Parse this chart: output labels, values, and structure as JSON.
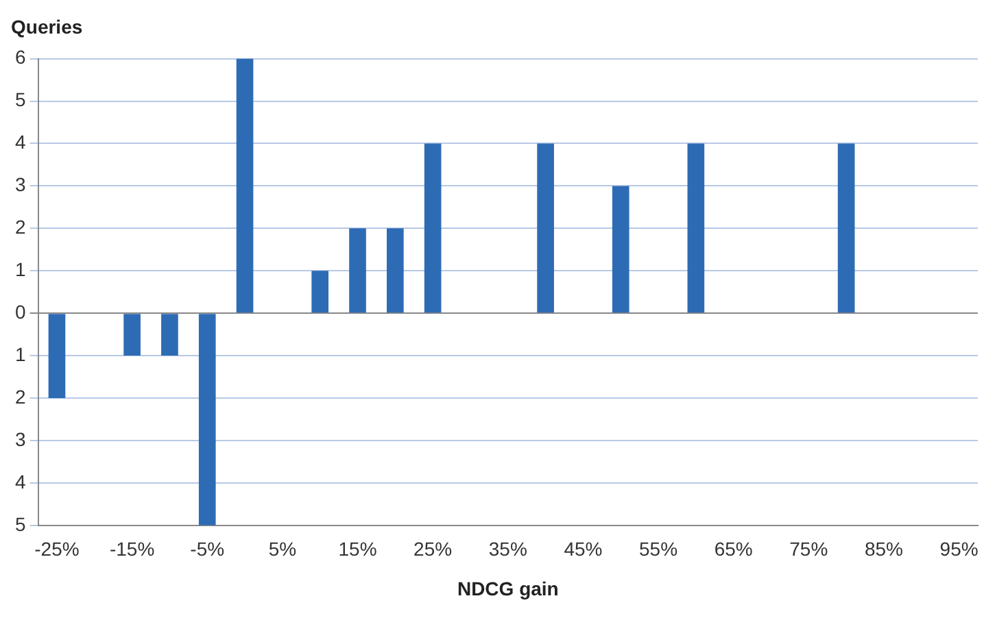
{
  "chart_data": {
    "type": "bar",
    "ylabel": "Queries",
    "xlabel": "NDCG gain",
    "categories": [
      "-25%",
      null,
      "-15%",
      null,
      "-5%",
      null,
      "5%",
      null,
      "15%",
      null,
      "25%",
      null,
      "35%",
      null,
      "45%",
      null,
      "55%",
      null,
      "65%",
      null,
      "75%",
      null,
      "85%",
      null,
      "95%"
    ],
    "values": [
      -2,
      0,
      -1,
      -1,
      -5,
      6,
      0,
      1,
      2,
      2,
      4,
      0,
      0,
      4,
      0,
      3,
      0,
      4,
      0,
      0,
      0,
      4,
      0,
      0,
      0
    ],
    "color": "#2e6bb5",
    "ylim": [
      -5,
      6
    ],
    "yticks": [
      {
        "value": -5,
        "label": "5"
      },
      {
        "value": -4,
        "label": "4"
      },
      {
        "value": -3,
        "label": "3"
      },
      {
        "value": -2,
        "label": "2"
      },
      {
        "value": -1,
        "label": "1"
      },
      0,
      1,
      2,
      3,
      4,
      5,
      6
    ],
    "grid": "y",
    "legend": false
  }
}
